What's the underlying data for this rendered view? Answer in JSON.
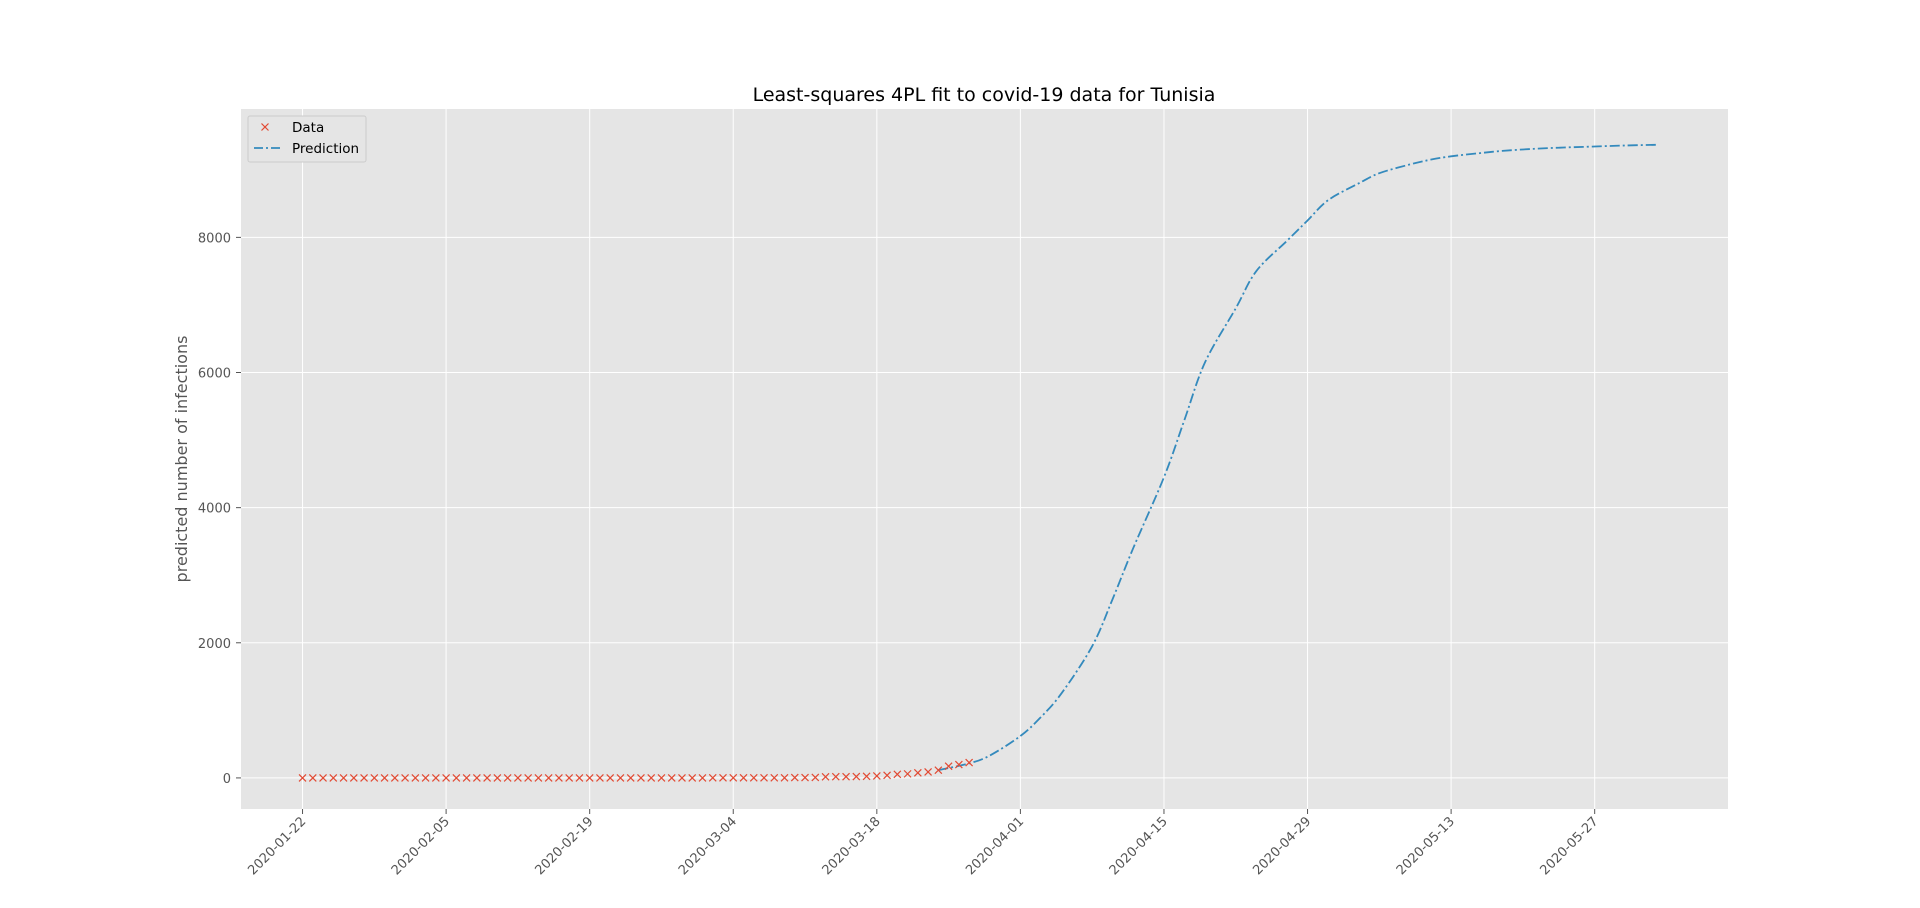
{
  "chart_data": {
    "type": "line",
    "title": "Least-squares 4PL fit to covid-19 data for Tunisia",
    "xlabel": "",
    "ylabel": "predicted number of infections",
    "x_axis_type": "date",
    "x_tick_labels": [
      "2020-01-22",
      "2020-02-05",
      "2020-02-19",
      "2020-03-04",
      "2020-03-18",
      "2020-04-01",
      "2020-04-15",
      "2020-04-29",
      "2020-05-13",
      "2020-05-27"
    ],
    "y_ticks": [
      0,
      2000,
      4000,
      6000,
      8000
    ],
    "xlim": [
      "2020-01-16",
      "2020-06-09"
    ],
    "ylim": [
      -460,
      9900
    ],
    "grid": true,
    "legend_position": "top-left",
    "series": [
      {
        "name": "Data",
        "kind": "scatter",
        "marker": "x",
        "color": "#E24A33",
        "x": [
          "2020-01-22",
          "2020-01-23",
          "2020-01-24",
          "2020-01-25",
          "2020-01-26",
          "2020-01-27",
          "2020-01-28",
          "2020-01-29",
          "2020-01-30",
          "2020-01-31",
          "2020-02-01",
          "2020-02-02",
          "2020-02-03",
          "2020-02-04",
          "2020-02-05",
          "2020-02-06",
          "2020-02-07",
          "2020-02-08",
          "2020-02-09",
          "2020-02-10",
          "2020-02-11",
          "2020-02-12",
          "2020-02-13",
          "2020-02-14",
          "2020-02-15",
          "2020-02-16",
          "2020-02-17",
          "2020-02-18",
          "2020-02-19",
          "2020-02-20",
          "2020-02-21",
          "2020-02-22",
          "2020-02-23",
          "2020-02-24",
          "2020-02-25",
          "2020-02-26",
          "2020-02-27",
          "2020-02-28",
          "2020-02-29",
          "2020-03-01",
          "2020-03-02",
          "2020-03-03",
          "2020-03-04",
          "2020-03-05",
          "2020-03-06",
          "2020-03-07",
          "2020-03-08",
          "2020-03-09",
          "2020-03-10",
          "2020-03-11",
          "2020-03-12",
          "2020-03-13",
          "2020-03-14",
          "2020-03-15",
          "2020-03-16",
          "2020-03-17",
          "2020-03-18",
          "2020-03-19",
          "2020-03-20",
          "2020-03-21",
          "2020-03-22",
          "2020-03-23",
          "2020-03-24",
          "2020-03-25",
          "2020-03-26",
          "2020-03-27"
        ],
        "values": [
          0,
          0,
          0,
          0,
          0,
          0,
          0,
          0,
          0,
          0,
          0,
          0,
          0,
          0,
          0,
          0,
          0,
          0,
          0,
          0,
          0,
          0,
          0,
          0,
          0,
          0,
          0,
          0,
          0,
          0,
          0,
          0,
          0,
          0,
          0,
          0,
          0,
          0,
          0,
          0,
          1,
          1,
          1,
          1,
          1,
          1,
          1,
          2,
          5,
          6,
          7,
          16,
          18,
          18,
          20,
          24,
          29,
          39,
          54,
          60,
          75,
          89,
          114,
          173,
          197,
          227
        ]
      },
      {
        "name": "Prediction",
        "kind": "line",
        "style": "dashdot",
        "color": "#348ABD",
        "model": "4PL",
        "x": [
          "2020-03-24",
          "2020-03-27",
          "2020-03-29",
          "2020-04-01",
          "2020-04-03",
          "2020-04-05",
          "2020-04-08",
          "2020-04-10",
          "2020-04-12",
          "2020-04-15",
          "2020-04-17",
          "2020-04-19",
          "2020-04-22",
          "2020-04-24",
          "2020-04-27",
          "2020-04-29",
          "2020-05-01",
          "2020-05-04",
          "2020-05-06",
          "2020-05-09",
          "2020-05-11",
          "2020-05-13",
          "2020-05-16",
          "2020-05-18",
          "2020-05-21",
          "2020-05-24",
          "2020-05-27",
          "2020-05-30",
          "2020-06-02"
        ],
        "values": [
          115,
          215,
          330,
          620,
          900,
          1250,
          1950,
          2650,
          3400,
          4450,
          5300,
          6150,
          6950,
          7500,
          7950,
          8250,
          8550,
          8800,
          8950,
          9080,
          9150,
          9200,
          9250,
          9280,
          9310,
          9330,
          9345,
          9360,
          9370
        ]
      }
    ]
  }
}
